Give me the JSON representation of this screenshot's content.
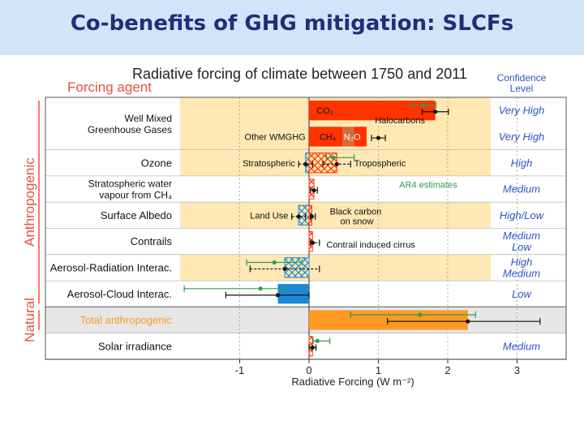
{
  "slide": {
    "title": "Co-benefits of GHG mitigation: SLCFs"
  },
  "chart_data": {
    "type": "bar",
    "title": "Radiative forcing of climate between 1750 and 2011",
    "row_header": "Forcing agent",
    "conf_header": [
      "Confidence",
      "Level"
    ],
    "xlabel": "Radiative Forcing (W m⁻²)",
    "xlim": [
      -2,
      3.5
    ],
    "xticks": [
      -1,
      0,
      1,
      2,
      3
    ],
    "groups": [
      {
        "label": "Anthropogenic",
        "rows": [
          0,
          7
        ]
      },
      {
        "label": "Natural",
        "rows": [
          8,
          8
        ]
      }
    ],
    "colors": {
      "highlight": "#ffe8b3",
      "positive": "#ff3300",
      "negative": "#1e88d6",
      "total": "#ff9922",
      "ar4": "#2e9e4e",
      "conf_text": "#2b55c8",
      "group_text": "#e8503a"
    },
    "rows": [
      {
        "label": [
          "Well Mixed",
          "Greenhouse Gases"
        ],
        "span": 2,
        "shade": true
      },
      {
        "label": [
          "Ozone"
        ],
        "shade": true
      },
      {
        "label": [
          "Stratospheric water",
          "vapour from CH₄"
        ],
        "shade": false
      },
      {
        "label": [
          "Surface Albedo"
        ],
        "shade": true
      },
      {
        "label": [
          "Contrails"
        ],
        "shade": false
      },
      {
        "label": [
          "Aerosol-Radiation Interac."
        ],
        "shade": true
      },
      {
        "label": [
          "Aerosol-Cloud Interac."
        ],
        "shade": false
      },
      {
        "label": [
          "Total anthropogenic"
        ],
        "shade": false,
        "total": true
      },
      {
        "label": [
          "Solar irradiance"
        ],
        "shade": false
      }
    ],
    "components": [
      {
        "name": "CO₂",
        "row": 0,
        "value": 1.82,
        "range": [
          1.63,
          2.01
        ],
        "ar4": 1.66,
        "ar4_range": [
          1.49,
          1.83
        ],
        "color": "#ff3300"
      },
      {
        "name": "Halocarbons",
        "row": 1,
        "value": 0.18,
        "color": "#ff3300"
      },
      {
        "name": "Other WMGHG",
        "row": 1,
        "value": 1.0,
        "range": [
          0.9,
          1.1
        ],
        "color": "#ff3300"
      },
      {
        "name": "CH₄",
        "row": 1,
        "value": 0.48,
        "color": "#ff3300"
      },
      {
        "name": "N₂O",
        "row": 1,
        "value": 0.17,
        "color": "#d86a3a"
      },
      {
        "name": "Stratospheric",
        "row": 2,
        "value": -0.05,
        "range": [
          -0.15,
          0.05
        ],
        "color": "#1e88d6",
        "hatch": true
      },
      {
        "name": "Tropospheric",
        "row": 2,
        "value": 0.4,
        "range": [
          0.2,
          0.6
        ],
        "ar4": 0.35,
        "ar4_range": [
          0.25,
          0.65
        ],
        "color": "#ff3300",
        "hatch": true
      },
      {
        "name": "Stratospheric water vapour",
        "row": 3,
        "value": 0.07,
        "range": [
          0.02,
          0.12
        ],
        "color": "#ff3300",
        "hatch": true
      },
      {
        "name": "Land Use",
        "row": 4,
        "value": -0.15,
        "range": [
          -0.25,
          -0.05
        ],
        "color": "#1e88d6",
        "hatch": true
      },
      {
        "name": "Black carbon on snow",
        "row": 4,
        "value": 0.04,
        "range": [
          0.02,
          0.09
        ],
        "color": "#ff3300",
        "hatch": true
      },
      {
        "name": "Contrail induced cirrus",
        "row": 5,
        "value": 0.05,
        "range": [
          0.02,
          0.15
        ],
        "color": "#ff3300",
        "hatch": true
      },
      {
        "name": "Aerosol-Radiation Interac.",
        "row": 6,
        "value": -0.35,
        "range": [
          -0.85,
          0.15
        ],
        "ar4": -0.5,
        "ar4_range": [
          -0.9,
          -0.1
        ],
        "color": "#1e88d6",
        "hatch": true
      },
      {
        "name": "Aerosol-Cloud Interac.",
        "row": 7,
        "value": -0.45,
        "range": [
          -1.2,
          0.0
        ],
        "ar4": -0.7,
        "ar4_range": [
          -1.8,
          -0.3
        ],
        "color": "#1e88d6"
      },
      {
        "name": "Total anthropogenic",
        "row": 8,
        "value": 2.29,
        "range": [
          1.13,
          3.33
        ],
        "ar4": 1.6,
        "ar4_range": [
          0.6,
          2.4
        ],
        "color": "#ff9922"
      },
      {
        "name": "Solar irradiance",
        "row": 9,
        "value": 0.05,
        "range": [
          0.0,
          0.1
        ],
        "ar4": 0.12,
        "ar4_range": [
          0.06,
          0.3
        ],
        "color": "#ff3300",
        "hatch": true
      }
    ],
    "ar4_label": "AR4 estimates",
    "confidence": [
      "Very High",
      "Very High",
      "High",
      "Medium",
      "High/Low",
      [
        "Medium",
        "Low"
      ],
      [
        "High",
        "Medium"
      ],
      "Low",
      "",
      "Medium"
    ]
  }
}
